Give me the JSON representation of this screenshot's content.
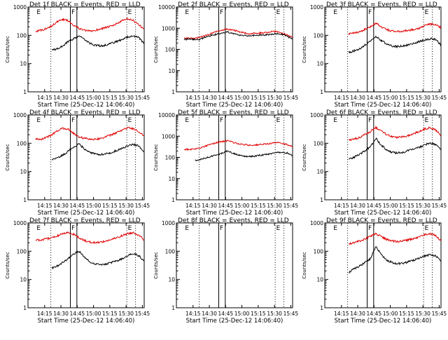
{
  "figure": {
    "colors": {
      "events": "#000000",
      "lld": "#e00000",
      "axes": "#000000"
    }
  },
  "chart_data": [
    {
      "type": "line",
      "title": "Det 1f BLACK = Events, RED = LLD",
      "xlabel": "Start Time (25-Dec-12 14:06:40)",
      "ylabel": "Counts/sec",
      "yscale": "log",
      "ylim": [
        1,
        1000
      ],
      "x_ticks": [
        "14:15",
        "14:30",
        "14:45",
        "15:00",
        "15:15",
        "15:30",
        "15:45"
      ],
      "y_ticks": [
        "1",
        "10",
        "100",
        "1000"
      ],
      "x_minutes": [
        0,
        5,
        10,
        15,
        20,
        25,
        30,
        35,
        40,
        45,
        50,
        55,
        60,
        65,
        70,
        75,
        80,
        85,
        90,
        95,
        100
      ],
      "vline_minutes": [
        14,
        32,
        38,
        84,
        92
      ],
      "markers": [
        {
          "label": "E",
          "minute": 0
        },
        {
          "label": "F",
          "minute": 32
        },
        {
          "label": "E",
          "minute": 84
        }
      ],
      "series": [
        {
          "name": "LLD",
          "color": "#e00000",
          "values": [
            140,
            150,
            170,
            220,
            300,
            360,
            330,
            230,
            175,
            150,
            140,
            150,
            170,
            190,
            210,
            260,
            330,
            380,
            330,
            240,
            160
          ]
        },
        {
          "name": "Events",
          "color": "#000000",
          "values": [
            null,
            null,
            null,
            30,
            33,
            42,
            60,
            75,
            95,
            70,
            52,
            44,
            42,
            46,
            52,
            60,
            72,
            90,
            95,
            82,
            52
          ]
        }
      ]
    },
    {
      "type": "line",
      "title": "Det 2f BLACK = Events, RED = LLD",
      "xlabel": "Start Time (25-Dec-12 14:06:40)",
      "ylabel": "Counts/sec",
      "yscale": "log",
      "ylim": [
        1,
        10000
      ],
      "x_ticks": [
        "14:15",
        "14:30",
        "14:45",
        "15:00",
        "15:15",
        "15:30",
        "15:45"
      ],
      "y_ticks": [
        "1",
        "10",
        "100",
        "1000",
        "10000"
      ],
      "x_minutes": [
        0,
        5,
        10,
        15,
        20,
        25,
        30,
        35,
        40,
        45,
        50,
        55,
        60,
        65,
        70,
        75,
        80,
        85,
        90,
        95,
        100
      ],
      "vline_minutes": [
        14,
        32,
        38,
        84,
        92
      ],
      "markers": [
        {
          "label": "E",
          "minute": 0
        },
        {
          "label": "F",
          "minute": 32
        },
        {
          "label": "E",
          "minute": 84
        }
      ],
      "series": [
        {
          "name": "LLD",
          "color": "#e00000",
          "values": [
            340,
            330,
            340,
            380,
            450,
            560,
            700,
            780,
            900,
            840,
            700,
            600,
            560,
            580,
            600,
            620,
            680,
            700,
            600,
            480,
            380
          ]
        },
        {
          "name": "Events",
          "color": "#000000",
          "values": [
            300,
            300,
            290,
            300,
            380,
            460,
            520,
            560,
            680,
            560,
            490,
            450,
            440,
            460,
            470,
            480,
            510,
            550,
            520,
            420,
            300
          ]
        }
      ]
    },
    {
      "type": "line",
      "title": "Det 3f BLACK = Events, RED = LLD",
      "xlabel": "Start Time (25-Dec-12 14:06:40)",
      "ylabel": "Counts/sec",
      "yscale": "log",
      "ylim": [
        1,
        1000
      ],
      "x_ticks": [
        "14:15",
        "14:30",
        "14:45",
        "15:00",
        "15:15",
        "15:30",
        "15:45"
      ],
      "y_ticks": [
        "1",
        "10",
        "100",
        "1000"
      ],
      "x_minutes": [
        0,
        5,
        10,
        15,
        20,
        25,
        30,
        35,
        40,
        45,
        50,
        55,
        60,
        65,
        70,
        75,
        80,
        85,
        90,
        95,
        100
      ],
      "vline_minutes": [
        14,
        32,
        38,
        84,
        92
      ],
      "markers": [
        {
          "label": "E",
          "minute": 0
        },
        {
          "label": "F",
          "minute": 32
        },
        {
          "label": "E",
          "minute": 84
        }
      ],
      "series": [
        {
          "name": "LLD",
          "color": "#e00000",
          "values": [
            null,
            null,
            null,
            110,
            120,
            135,
            160,
            200,
            270,
            200,
            160,
            140,
            135,
            140,
            150,
            160,
            180,
            220,
            250,
            230,
            190
          ]
        },
        {
          "name": "Events",
          "color": "#000000",
          "values": [
            null,
            null,
            null,
            25,
            28,
            33,
            45,
            60,
            90,
            65,
            50,
            42,
            40,
            42,
            46,
            52,
            60,
            68,
            75,
            72,
            45
          ]
        }
      ]
    },
    {
      "type": "line",
      "title": "Det 4f BLACK = Events, RED = LLD",
      "xlabel": "Start Time (25-Dec-12 14:06:40)",
      "ylabel": "Counts/sec",
      "yscale": "log",
      "ylim": [
        1,
        1000
      ],
      "x_ticks": [
        "14:15",
        "14:30",
        "14:45",
        "15:00",
        "15:15",
        "15:30",
        "15:45"
      ],
      "y_ticks": [
        "1",
        "10",
        "100",
        "1000"
      ],
      "x_minutes": [
        0,
        5,
        10,
        15,
        20,
        25,
        30,
        35,
        40,
        45,
        50,
        55,
        60,
        65,
        70,
        75,
        80,
        85,
        90,
        95,
        100
      ],
      "vline_minutes": [
        14,
        32,
        38,
        84,
        92
      ],
      "markers": [
        {
          "label": "E",
          "minute": 0
        },
        {
          "label": "F",
          "minute": 32
        },
        {
          "label": "E",
          "minute": 84
        }
      ],
      "series": [
        {
          "name": "LLD",
          "color": "#e00000",
          "values": [
            140,
            140,
            160,
            200,
            270,
            340,
            320,
            220,
            170,
            150,
            140,
            140,
            150,
            170,
            200,
            240,
            300,
            350,
            330,
            250,
            190
          ]
        },
        {
          "name": "Events",
          "color": "#000000",
          "values": [
            null,
            null,
            null,
            26,
            30,
            38,
            52,
            70,
            95,
            62,
            48,
            42,
            40,
            42,
            48,
            56,
            66,
            80,
            90,
            82,
            50
          ]
        }
      ]
    },
    {
      "type": "line",
      "title": "Det 5f BLACK = Events, RED = LLD",
      "xlabel": "Start Time (25-Dec-12 14:06:40)",
      "ylabel": "Counts/sec",
      "yscale": "log",
      "ylim": [
        1,
        10000
      ],
      "x_ticks": [
        "14:15",
        "14:30",
        "14:45",
        "15:00",
        "15:15",
        "15:30",
        "15:45"
      ],
      "y_ticks": [
        "1",
        "10",
        "100",
        "1000",
        "10000"
      ],
      "x_minutes": [
        0,
        5,
        10,
        15,
        20,
        25,
        30,
        35,
        40,
        45,
        50,
        55,
        60,
        65,
        70,
        75,
        80,
        85,
        90,
        95,
        100
      ],
      "vline_minutes": [
        14,
        32,
        38,
        84,
        92
      ],
      "markers": [
        {
          "label": "E",
          "minute": 0
        },
        {
          "label": "F",
          "minute": 32
        },
        {
          "label": "E",
          "minute": 84
        }
      ],
      "series": [
        {
          "name": "LLD",
          "color": "#e00000",
          "values": [
            240,
            240,
            250,
            280,
            340,
            420,
            500,
            560,
            600,
            520,
            440,
            400,
            380,
            380,
            400,
            420,
            460,
            500,
            470,
            400,
            320
          ]
        },
        {
          "name": "Events",
          "color": "#000000",
          "values": [
            null,
            null,
            70,
            80,
            95,
            110,
            130,
            160,
            200,
            160,
            130,
            115,
            110,
            115,
            125,
            135,
            150,
            170,
            175,
            160,
            120
          ]
        }
      ]
    },
    {
      "type": "line",
      "title": "Det 6f BLACK = Events, RED = LLD",
      "xlabel": "Start Time (25-Dec-12 14:06:40)",
      "ylabel": "Counts/sec",
      "yscale": "log",
      "ylim": [
        1,
        1000
      ],
      "x_ticks": [
        "14:15",
        "14:30",
        "14:45",
        "15:00",
        "15:15",
        "15:30",
        "15:45"
      ],
      "y_ticks": [
        "1",
        "10",
        "100",
        "1000"
      ],
      "x_minutes": [
        0,
        5,
        10,
        15,
        20,
        25,
        30,
        35,
        40,
        45,
        50,
        55,
        60,
        65,
        70,
        75,
        80,
        85,
        90,
        95,
        100
      ],
      "vline_minutes": [
        14,
        32,
        38,
        84,
        92
      ],
      "markers": [
        {
          "label": "E",
          "minute": 0
        },
        {
          "label": "F",
          "minute": 32
        },
        {
          "label": "E",
          "minute": 84
        }
      ],
      "series": [
        {
          "name": "LLD",
          "color": "#e00000",
          "values": [
            null,
            null,
            null,
            130,
            140,
            160,
            200,
            260,
            360,
            280,
            200,
            170,
            160,
            170,
            190,
            220,
            260,
            320,
            350,
            300,
            190
          ]
        },
        {
          "name": "Events",
          "color": "#000000",
          "values": [
            null,
            null,
            null,
            28,
            32,
            40,
            55,
            75,
            150,
            85,
            58,
            48,
            45,
            48,
            55,
            62,
            72,
            88,
            100,
            90,
            60
          ]
        }
      ]
    },
    {
      "type": "line",
      "title": "Det 7f BLACK = Events, RED = LLD",
      "xlabel": "Start Time (25-Dec-12 14:06:40)",
      "ylabel": "Counts/sec",
      "yscale": "log",
      "ylim": [
        1,
        1000
      ],
      "x_ticks": [
        "14:15",
        "14:30",
        "14:45",
        "15:00",
        "15:15",
        "15:30",
        "15:45"
      ],
      "y_ticks": [
        "1",
        "10",
        "100",
        "1000"
      ],
      "x_minutes": [
        0,
        5,
        10,
        15,
        20,
        25,
        30,
        35,
        40,
        45,
        50,
        55,
        60,
        65,
        70,
        75,
        80,
        85,
        90,
        95,
        100
      ],
      "vline_minutes": [
        14,
        32,
        38,
        84,
        92
      ],
      "markers": [
        {
          "label": "E",
          "minute": 0
        },
        {
          "label": "F",
          "minute": 32
        },
        {
          "label": "E",
          "minute": 84
        }
      ],
      "series": [
        {
          "name": "LLD",
          "color": "#e00000",
          "values": [
            250,
            250,
            270,
            300,
            350,
            420,
            450,
            400,
            300,
            240,
            210,
            200,
            210,
            230,
            260,
            300,
            360,
            420,
            450,
            380,
            250
          ]
        },
        {
          "name": "Events",
          "color": "#000000",
          "values": [
            null,
            null,
            null,
            25,
            30,
            40,
            55,
            80,
            100,
            60,
            42,
            36,
            34,
            36,
            40,
            46,
            55,
            70,
            80,
            70,
            45
          ]
        }
      ]
    },
    {
      "type": "line",
      "title": "Det 8f BLACK = Events, RED = LLD",
      "xlabel": "Start Time (25-Dec-12 14:06:40)",
      "ylabel": "Counts/sec",
      "yscale": "log",
      "ylim": [
        1,
        1000
      ],
      "x_ticks": [
        "14:15",
        "14:30",
        "14:45",
        "15:00",
        "15:15",
        "15:30",
        "15:45"
      ],
      "y_ticks": [
        "1",
        "10",
        "100",
        "1000"
      ],
      "x_minutes": [
        0,
        5,
        10,
        15,
        20,
        25,
        30,
        35,
        40,
        45,
        50,
        55,
        60,
        65,
        70,
        75,
        80,
        85,
        90,
        95,
        100
      ],
      "vline_minutes": [
        14,
        32,
        38,
        84,
        92
      ],
      "markers": [
        {
          "label": "E",
          "minute": 0
        },
        {
          "label": "F",
          "minute": 32
        },
        {
          "label": "E",
          "minute": 84
        }
      ],
      "series": []
    },
    {
      "type": "line",
      "title": "Det 9f BLACK = Events, RED = LLD",
      "xlabel": "Start Time (25-Dec-12 14:06:40)",
      "ylabel": "Counts/sec",
      "yscale": "log",
      "ylim": [
        1,
        1000
      ],
      "x_ticks": [
        "14:15",
        "14:30",
        "14:45",
        "15:00",
        "15:15",
        "15:30",
        "15:45"
      ],
      "y_ticks": [
        "1",
        "10",
        "100",
        "1000"
      ],
      "x_minutes": [
        0,
        5,
        10,
        15,
        20,
        25,
        30,
        35,
        40,
        45,
        50,
        55,
        60,
        65,
        70,
        75,
        80,
        85,
        90,
        95,
        100
      ],
      "vline_minutes": [
        14,
        32,
        38,
        84,
        92
      ],
      "markers": [
        {
          "label": "E",
          "minute": 0
        },
        {
          "label": "F",
          "minute": 32
        },
        {
          "label": "E",
          "minute": 84
        }
      ],
      "series": [
        {
          "name": "LLD",
          "color": "#e00000",
          "values": [
            null,
            null,
            null,
            180,
            200,
            230,
            270,
            330,
            420,
            330,
            260,
            230,
            220,
            230,
            250,
            280,
            320,
            380,
            420,
            360,
            240
          ]
        },
        {
          "name": "Events",
          "color": "#000000",
          "values": [
            null,
            null,
            null,
            18,
            24,
            30,
            40,
            55,
            150,
            75,
            48,
            40,
            36,
            38,
            42,
            48,
            56,
            68,
            75,
            68,
            45
          ]
        }
      ]
    }
  ]
}
